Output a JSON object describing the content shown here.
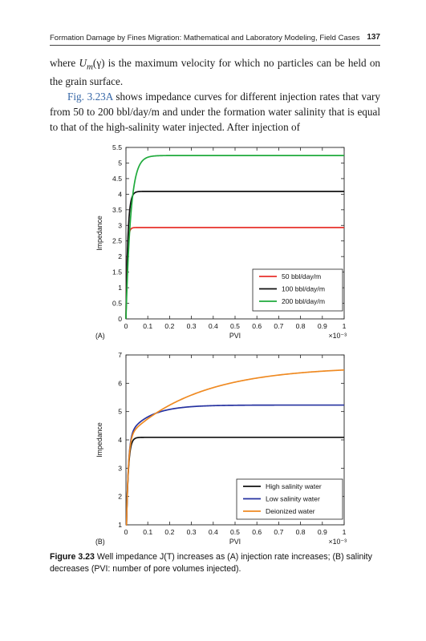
{
  "header": {
    "title": "Formation Damage by Fines Migration: Mathematical and Laboratory Modeling, Field Cases",
    "page": "137"
  },
  "body_text": {
    "line1_a": "where ",
    "line1_sym": "U",
    "line1_sub": "m",
    "line1_b": "(γ) is the maximum velocity for which no particles can be held on the grain surface.",
    "p2_ref": "Fig. 3.23A",
    "p2_text": " shows impedance curves for different injection rates that vary from 50 to 200 bbl/day/m and under the formation water salinity that is equal to that of the high-salinity water injected. After injection of"
  },
  "chart_data": [
    {
      "type": "line",
      "panel_label": "(A)",
      "xlabel": "PVI",
      "x_multiplier": "×10⁻³",
      "ylabel": "Impedance",
      "xlim": [
        0,
        1
      ],
      "ylim": [
        0,
        5.5
      ],
      "xticks": [
        "0",
        "0.1",
        "0.2",
        "0.3",
        "0.4",
        "0.5",
        "0.6",
        "0.7",
        "0.8",
        "0.9",
        "1"
      ],
      "yticks": [
        "0",
        "0.5",
        "1",
        "1.5",
        "2",
        "2.5",
        "3",
        "3.5",
        "4",
        "4.5",
        "5",
        "5.5"
      ],
      "legend_position": "bottom-right",
      "series": [
        {
          "name": "50 bbl/day/m",
          "color": "#e8312b",
          "plateau": 2.93,
          "k": 0.0055
        },
        {
          "name": "100 bbl/day/m",
          "color": "#111111",
          "plateau": 4.09,
          "k": 0.009
        },
        {
          "name": "200 bbl/day/m",
          "color": "#1faa3c",
          "plateau": 5.24,
          "k": 0.022
        }
      ]
    },
    {
      "type": "line",
      "panel_label": "(B)",
      "xlabel": "PVI",
      "x_multiplier": "×10⁻³",
      "ylabel": "Impedance",
      "xlim": [
        0,
        1
      ],
      "ylim": [
        1,
        7
      ],
      "xticks": [
        "0",
        "0.1",
        "0.2",
        "0.3",
        "0.4",
        "0.5",
        "0.6",
        "0.7",
        "0.8",
        "0.9",
        "1"
      ],
      "yticks": [
        "1",
        "2",
        "3",
        "4",
        "5",
        "6",
        "7"
      ],
      "legend_position": "bottom-right",
      "series": [
        {
          "name": "High salinity water",
          "color": "#111111",
          "plateau": 4.09,
          "k1": 0.009,
          "amp2": 0,
          "k2": 0.1
        },
        {
          "name": "Low salinity water",
          "color": "#2632a0",
          "plateau": 4.09,
          "k1": 0.009,
          "amp2": 1.14,
          "k2": 0.1
        },
        {
          "name": "Deionized water",
          "color": "#ef8a22",
          "plateau": 4.09,
          "k1": 0.009,
          "amp2": 2.5,
          "k2": 0.33
        }
      ]
    }
  ],
  "caption": {
    "label": "Figure 3.23",
    "text": " Well impedance J(T) increases as (A) injection rate increases; (B) salinity decreases (PVI: number of pore volumes injected)."
  }
}
